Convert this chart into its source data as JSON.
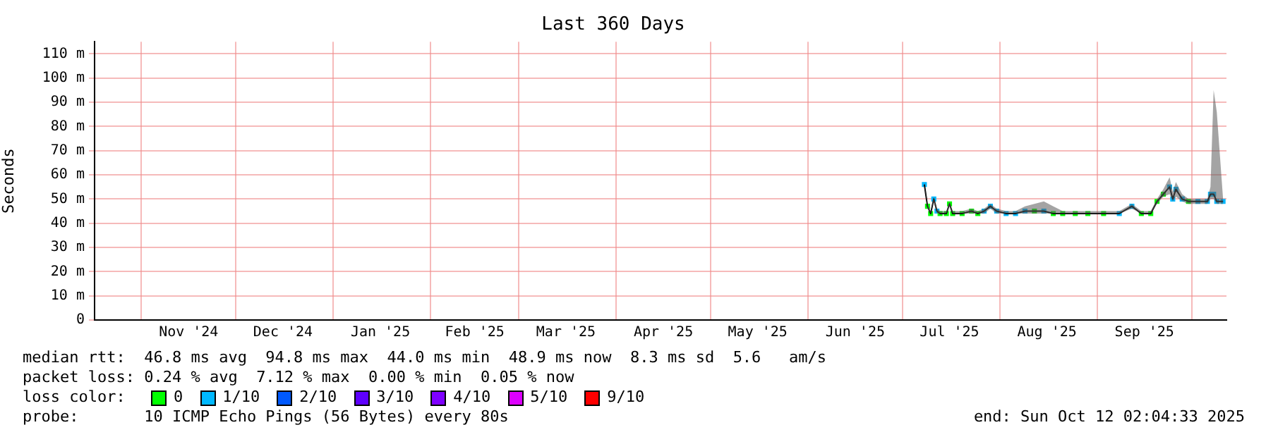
{
  "chart_data": {
    "type": "line",
    "title": "Last 360 Days",
    "ylabel": "Seconds",
    "legend_title": "loss color:",
    "legend": "bottom",
    "grid": true,
    "annotations": [
      "median rtt:  46.8 ms avg  94.8 ms max  44.0 ms min  48.9 ms now  8.3 ms sd  5.6   am/s",
      "packet loss: 0.24 % avg  7.12 % max  0.00 % min  0.05 % now",
      "probe:       10 ICMP Echo Pings (56 Bytes) every 80s",
      "end: Sun Oct 12 02:04:33 2025"
    ],
    "xlim": [
      "2024-10-17T02:04",
      "2025-10-12T02:04"
    ],
    "xticks": [
      {
        "value": "2024-11-01",
        "label": null
      },
      {
        "value": "2024-11-16",
        "label": "Nov '24"
      },
      {
        "value": "2024-12-01",
        "label": null
      },
      {
        "value": "2024-12-16",
        "label": "Dec '24"
      },
      {
        "value": "2025-01-01",
        "label": null
      },
      {
        "value": "2025-01-16",
        "label": "Jan '25"
      },
      {
        "value": "2025-02-01",
        "label": null
      },
      {
        "value": "2025-02-15",
        "label": "Feb '25"
      },
      {
        "value": "2025-03-01",
        "label": null
      },
      {
        "value": "2025-03-16",
        "label": "Mar '25"
      },
      {
        "value": "2025-04-01",
        "label": null
      },
      {
        "value": "2025-04-16",
        "label": "Apr '25"
      },
      {
        "value": "2025-05-01",
        "label": null
      },
      {
        "value": "2025-05-16",
        "label": "May '25"
      },
      {
        "value": "2025-06-01",
        "label": null
      },
      {
        "value": "2025-06-16",
        "label": "Jun '25"
      },
      {
        "value": "2025-07-01",
        "label": null
      },
      {
        "value": "2025-07-16",
        "label": "Jul '25"
      },
      {
        "value": "2025-08-01",
        "label": null
      },
      {
        "value": "2025-08-16",
        "label": "Aug '25"
      },
      {
        "value": "2025-09-01",
        "label": null
      },
      {
        "value": "2025-09-16",
        "label": "Sep '25"
      },
      {
        "value": "2025-10-01",
        "label": null
      }
    ],
    "ylim": [
      0,
      115
    ],
    "yticks": [
      0,
      {
        "value": 10,
        "label": "10 m"
      },
      {
        "value": 20,
        "label": "20 m"
      },
      {
        "value": 30,
        "label": "30 m"
      },
      {
        "value": 40,
        "label": "40 m"
      },
      {
        "value": 50,
        "label": "50 m"
      },
      {
        "value": 60,
        "label": "60 m"
      },
      {
        "value": 70,
        "label": "70 m"
      },
      {
        "value": 80,
        "label": "80 m"
      },
      {
        "value": 90,
        "label": "90 m"
      },
      {
        "value": 100,
        "label": "100 m"
      },
      {
        "value": 110,
        "label": "110 m"
      }
    ],
    "x": [
      "2025-07-08",
      "2025-07-09",
      "2025-07-10",
      "2025-07-11",
      "2025-07-12",
      "2025-07-13",
      "2025-07-15",
      "2025-07-16",
      "2025-07-17",
      "2025-07-20",
      "2025-07-23",
      "2025-07-25",
      "2025-07-27",
      "2025-07-29",
      "2025-07-31",
      "2025-08-03",
      "2025-08-06",
      "2025-08-09",
      "2025-08-12",
      "2025-08-15",
      "2025-08-18",
      "2025-08-21",
      "2025-08-25",
      "2025-08-29",
      "2025-09-03",
      "2025-09-08",
      "2025-09-12",
      "2025-09-15",
      "2025-09-18",
      "2025-09-20",
      "2025-09-22",
      "2025-09-24",
      "2025-09-25",
      "2025-09-26",
      "2025-09-28",
      "2025-09-30",
      "2025-10-03",
      "2025-10-06",
      "2025-10-07",
      "2025-10-08",
      "2025-10-09",
      "2025-10-11"
    ],
    "series": [
      {
        "color": "#000000",
        "values": [
          56,
          47,
          44,
          50,
          45,
          44,
          44,
          48,
          44,
          44,
          45,
          44,
          45,
          47,
          45,
          44,
          44,
          45,
          45,
          45,
          44,
          44,
          44,
          44,
          44,
          44,
          47,
          44,
          44,
          49,
          52,
          55,
          50,
          54,
          50,
          49,
          49,
          49,
          52,
          52,
          49,
          49
        ],
        "lower": [
          56,
          46,
          44,
          49,
          44,
          44,
          44,
          47,
          44,
          44,
          44,
          44,
          44,
          46,
          44,
          44,
          44,
          44,
          44,
          44,
          44,
          44,
          44,
          44,
          44,
          44,
          46,
          44,
          44,
          48,
          51,
          52,
          49,
          51,
          49,
          48,
          48,
          48,
          50,
          50,
          48,
          48
        ],
        "upper": [
          57,
          48,
          45,
          51,
          46,
          45,
          45,
          49,
          45,
          45,
          46,
          45,
          46,
          48,
          46,
          45,
          45,
          47,
          48,
          49,
          47,
          45,
          45,
          45,
          45,
          45,
          48,
          45,
          45,
          50,
          54,
          59,
          53,
          57,
          52,
          50,
          50,
          50,
          55,
          95,
          86,
          50
        ]
      },
      {
        "type": "scatter",
        "marker": "square",
        "name": "0",
        "color": "#00ff00",
        "values": [
          null,
          47,
          44,
          null,
          null,
          44,
          44,
          48,
          44,
          44,
          45,
          44,
          null,
          null,
          null,
          null,
          null,
          null,
          45,
          null,
          44,
          44,
          44,
          44,
          44,
          null,
          null,
          44,
          44,
          49,
          52,
          null,
          null,
          null,
          null,
          49,
          null,
          null,
          null,
          null,
          null,
          null
        ]
      },
      {
        "type": "scatter",
        "marker": "square",
        "name": "1/10",
        "color": "#00b8ff",
        "values": [
          56,
          null,
          null,
          50,
          45,
          null,
          null,
          null,
          null,
          null,
          null,
          null,
          45,
          47,
          45,
          44,
          44,
          45,
          null,
          45,
          null,
          null,
          null,
          null,
          null,
          44,
          47,
          null,
          null,
          null,
          null,
          55,
          50,
          54,
          50,
          null,
          49,
          49,
          52,
          52,
          49,
          49
        ]
      },
      {
        "type": "scatter",
        "marker": "square",
        "name": "2/10",
        "color": "#0059ff",
        "values": [
          null,
          null,
          null,
          null,
          null,
          null,
          null,
          null,
          null,
          null,
          null,
          null,
          null,
          null,
          null,
          null,
          null,
          null,
          null,
          null,
          null,
          null,
          null,
          null,
          null,
          null,
          null,
          null,
          null,
          null,
          null,
          null,
          null,
          null,
          null,
          null,
          null,
          null,
          null,
          null,
          null,
          null
        ]
      },
      {
        "type": "scatter",
        "marker": "square",
        "name": "3/10",
        "color": "#5e00ff",
        "values": [
          null,
          null,
          null,
          null,
          null,
          null,
          null,
          null,
          null,
          null,
          null,
          null,
          null,
          null,
          null,
          null,
          null,
          null,
          null,
          null,
          null,
          null,
          null,
          null,
          null,
          null,
          null,
          null,
          null,
          null,
          null,
          null,
          null,
          null,
          null,
          null,
          null,
          null,
          null,
          null,
          null,
          null
        ]
      },
      {
        "type": "scatter",
        "marker": "square",
        "name": "4/10",
        "color": "#7e00ff",
        "values": [
          null,
          null,
          null,
          null,
          null,
          null,
          null,
          null,
          null,
          null,
          null,
          null,
          null,
          null,
          null,
          null,
          null,
          null,
          null,
          null,
          null,
          null,
          null,
          null,
          null,
          null,
          null,
          null,
          null,
          null,
          null,
          null,
          null,
          null,
          null,
          null,
          null,
          null,
          null,
          null,
          null,
          null
        ]
      },
      {
        "type": "scatter",
        "marker": "square",
        "name": "5/10",
        "color": "#dd00ff",
        "values": [
          null,
          null,
          null,
          null,
          null,
          null,
          null,
          null,
          null,
          null,
          null,
          null,
          null,
          null,
          null,
          null,
          null,
          null,
          null,
          null,
          null,
          null,
          null,
          null,
          null,
          null,
          null,
          null,
          null,
          null,
          null,
          null,
          null,
          null,
          null,
          null,
          null,
          null,
          null,
          null,
          null,
          null
        ]
      },
      {
        "type": "scatter",
        "marker": "square",
        "name": "9/10",
        "color": "#ff0000",
        "values": [
          null,
          null,
          null,
          null,
          null,
          null,
          null,
          null,
          null,
          null,
          null,
          null,
          null,
          null,
          null,
          null,
          null,
          null,
          null,
          null,
          null,
          null,
          null,
          null,
          null,
          null,
          null,
          null,
          null,
          null,
          null,
          null,
          null,
          null,
          null,
          null,
          null,
          null,
          null,
          null,
          null,
          null
        ]
      }
    ]
  }
}
